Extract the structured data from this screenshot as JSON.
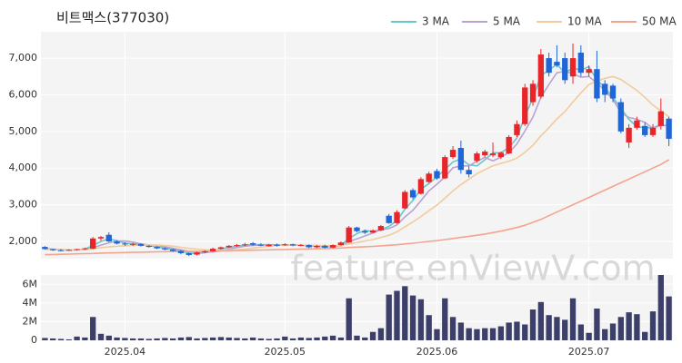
{
  "chart_data": {
    "type": "candlestick",
    "title": "비트맥스(377030)",
    "watermark": "feature.enViewV.com",
    "categories": [
      null,
      null,
      null,
      null,
      null,
      null,
      null,
      null,
      null,
      null,
      "2025.04",
      null,
      null,
      null,
      null,
      null,
      null,
      null,
      null,
      null,
      null,
      null,
      null,
      null,
      null,
      null,
      null,
      null,
      null,
      null,
      "2025.05",
      null,
      null,
      null,
      null,
      null,
      null,
      null,
      null,
      null,
      null,
      null,
      null,
      null,
      null,
      null,
      null,
      null,
      null,
      "2025.06",
      null,
      null,
      null,
      null,
      null,
      null,
      null,
      null,
      null,
      null,
      null,
      null,
      null,
      null,
      null,
      null,
      null,
      null,
      "2025.07",
      null,
      null,
      null,
      null,
      null,
      null,
      null,
      null,
      null,
      null
    ],
    "open": [
      1850,
      1790,
      1760,
      1750,
      1770,
      1790,
      1800,
      2080,
      2180,
      2000,
      1940,
      1920,
      1930,
      1880,
      1850,
      1810,
      1780,
      1740,
      1680,
      1640,
      1700,
      1730,
      1800,
      1840,
      1880,
      1900,
      1950,
      1910,
      1870,
      1910,
      1900,
      1920,
      1890,
      1900,
      1840,
      1880,
      1830,
      1900,
      1970,
      2380,
      2280,
      2240,
      2300,
      2700,
      2500,
      2900,
      3400,
      3300,
      3620,
      3920,
      3720,
      4300,
      4550,
      3950,
      4200,
      4350,
      4350,
      4300,
      4400,
      4900,
      5200,
      5800,
      5950,
      7000,
      6900,
      7000,
      6500,
      7150,
      6600,
      6700,
      6300,
      6250,
      5800,
      4700,
      5100,
      5150,
      4900,
      5150,
      5350
    ],
    "high": [
      1870,
      1800,
      1790,
      1790,
      1800,
      1830,
      2120,
      2150,
      2250,
      2030,
      1980,
      1960,
      1950,
      1900,
      1870,
      1840,
      1800,
      1760,
      1700,
      1720,
      1760,
      1830,
      1860,
      1900,
      1930,
      1960,
      1980,
      1950,
      1930,
      1940,
      1950,
      1940,
      1930,
      1920,
      1900,
      1910,
      1920,
      2000,
      2420,
      2400,
      2320,
      2330,
      2450,
      2750,
      2850,
      3400,
      3450,
      3750,
      3900,
      3980,
      4350,
      4600,
      4750,
      4050,
      4450,
      4500,
      4700,
      4450,
      4900,
      5300,
      6300,
      6400,
      7250,
      7150,
      7350,
      7150,
      7400,
      7350,
      6800,
      7200,
      6400,
      6300,
      5900,
      5200,
      5400,
      5250,
      5200,
      5900,
      5400
    ],
    "low": [
      1780,
      1740,
      1730,
      1740,
      1750,
      1770,
      1790,
      2020,
      1980,
      1920,
      1880,
      1880,
      1860,
      1830,
      1790,
      1760,
      1720,
      1650,
      1600,
      1620,
      1680,
      1720,
      1780,
      1820,
      1850,
      1870,
      1880,
      1870,
      1860,
      1860,
      1880,
      1870,
      1870,
      1820,
      1820,
      1810,
      1820,
      1880,
      1960,
      2250,
      2200,
      2220,
      2280,
      2480,
      2480,
      2880,
      3150,
      3280,
      3600,
      3680,
      3700,
      4250,
      3850,
      3750,
      4150,
      4300,
      4300,
      4250,
      4380,
      4850,
      5150,
      5700,
      5900,
      6500,
      6750,
      6300,
      6300,
      6500,
      6500,
      5800,
      5800,
      5800,
      4950,
      4550,
      5050,
      4850,
      4850,
      5050,
      4600
    ],
    "close": [
      1790,
      1760,
      1750,
      1770,
      1790,
      1810,
      2080,
      2120,
      2000,
      1940,
      1920,
      1930,
      1880,
      1850,
      1810,
      1780,
      1740,
      1680,
      1630,
      1700,
      1730,
      1800,
      1840,
      1880,
      1900,
      1920,
      1910,
      1900,
      1910,
      1880,
      1920,
      1890,
      1900,
      1840,
      1880,
      1830,
      1900,
      1970,
      2380,
      2280,
      2240,
      2300,
      2420,
      2500,
      2800,
      3350,
      3200,
      3700,
      3850,
      3720,
      4300,
      4500,
      3950,
      3830,
      4400,
      4450,
      4400,
      4420,
      4850,
      5200,
      6200,
      6300,
      7100,
      6600,
      6800,
      6400,
      7000,
      6600,
      6700,
      5900,
      6000,
      5900,
      5000,
      5100,
      5300,
      4900,
      5100,
      5550,
      4800
    ],
    "up_color": "#e8262a",
    "down_color": "#1f66d9",
    "series": [
      {
        "name": "3 MA",
        "color": "#66c8cc",
        "values": [
          1800,
          1780,
          1770,
          1760,
          1770,
          1790,
          1890,
          2000,
          2070,
          2020,
          1950,
          1930,
          1910,
          1890,
          1850,
          1810,
          1780,
          1730,
          1680,
          1670,
          1690,
          1740,
          1790,
          1840,
          1870,
          1900,
          1910,
          1910,
          1910,
          1900,
          1900,
          1900,
          1900,
          1880,
          1870,
          1850,
          1870,
          1900,
          2080,
          2210,
          2300,
          2270,
          2320,
          2410,
          2570,
          2880,
          3120,
          3420,
          3580,
          3760,
          3960,
          4170,
          4250,
          4090,
          4060,
          4230,
          4420,
          4420,
          4560,
          4820,
          5420,
          5900,
          6530,
          6670,
          6830,
          6600,
          6730,
          6670,
          6770,
          6400,
          6200,
          5930,
          5630,
          5330,
          5130,
          5100,
          5100,
          5180,
          5150
        ]
      },
      {
        "name": "5 MA",
        "color": "#b9a2d4",
        "values": [
          1800,
          1790,
          1780,
          1770,
          1770,
          1770,
          1830,
          1900,
          1960,
          2010,
          2010,
          1980,
          1930,
          1900,
          1880,
          1850,
          1810,
          1770,
          1730,
          1710,
          1700,
          1710,
          1740,
          1790,
          1830,
          1870,
          1890,
          1900,
          1910,
          1900,
          1910,
          1900,
          1900,
          1890,
          1890,
          1870,
          1870,
          1880,
          1990,
          2070,
          2150,
          2230,
          2320,
          2350,
          2450,
          2670,
          2850,
          3110,
          3380,
          3560,
          3760,
          4010,
          4060,
          4060,
          4190,
          4290,
          4200,
          4300,
          4420,
          4660,
          5010,
          5390,
          5930,
          6280,
          6600,
          6640,
          6580,
          6480,
          6500,
          6320,
          6120,
          5880,
          5510,
          5380,
          5330,
          5250,
          5080,
          5170,
          5150
        ]
      },
      {
        "name": "10 MA",
        "color": "#f2cb9c",
        "values": [
          1780,
          1780,
          1775,
          1770,
          1770,
          1775,
          1800,
          1830,
          1850,
          1870,
          1880,
          1890,
          1900,
          1905,
          1900,
          1890,
          1870,
          1840,
          1810,
          1790,
          1770,
          1760,
          1760,
          1765,
          1770,
          1790,
          1820,
          1845,
          1870,
          1890,
          1900,
          1900,
          1900,
          1895,
          1890,
          1885,
          1880,
          1885,
          1930,
          1970,
          2010,
          2050,
          2110,
          2170,
          2260,
          2400,
          2530,
          2680,
          2840,
          2990,
          3180,
          3380,
          3550,
          3700,
          3850,
          3960,
          4060,
          4130,
          4190,
          4270,
          4430,
          4620,
          4880,
          5100,
          5340,
          5540,
          5800,
          6050,
          6280,
          6370,
          6450,
          6500,
          6420,
          6270,
          6120,
          5930,
          5720,
          5560,
          5400
        ]
      },
      {
        "name": "50 MA",
        "color": "#f4a48e",
        "values": [
          1640,
          1645,
          1650,
          1655,
          1660,
          1665,
          1670,
          1680,
          1685,
          1690,
          1695,
          1700,
          1705,
          1710,
          1715,
          1720,
          1722,
          1724,
          1726,
          1728,
          1730,
          1735,
          1740,
          1745,
          1750,
          1755,
          1760,
          1765,
          1770,
          1775,
          1780,
          1785,
          1790,
          1795,
          1800,
          1805,
          1810,
          1820,
          1835,
          1845,
          1855,
          1865,
          1880,
          1895,
          1910,
          1930,
          1950,
          1975,
          2000,
          2020,
          2050,
          2080,
          2110,
          2140,
          2170,
          2200,
          2240,
          2280,
          2330,
          2380,
          2440,
          2520,
          2600,
          2700,
          2800,
          2900,
          3000,
          3100,
          3200,
          3300,
          3400,
          3500,
          3600,
          3700,
          3800,
          3900,
          4000,
          4100,
          4230
        ]
      }
    ],
    "ylim": [
      1530,
      7720
    ],
    "yticks": [
      {
        "value": 2000,
        "label": "2,000"
      },
      {
        "value": 3000,
        "label": "3,000"
      },
      {
        "value": 4000,
        "label": "4,000"
      },
      {
        "value": 5000,
        "label": "5,000"
      },
      {
        "value": 6000,
        "label": "6,000"
      },
      {
        "value": 7000,
        "label": "7,000"
      }
    ],
    "grid": true,
    "legend": "top-right",
    "volume": {
      "color": "#3d3f6b",
      "values": [
        250000,
        200000,
        150000,
        100000,
        400000,
        300000,
        2500000,
        700000,
        500000,
        300000,
        250000,
        200000,
        200000,
        150000,
        200000,
        250000,
        200000,
        300000,
        350000,
        200000,
        250000,
        300000,
        350000,
        300000,
        250000,
        200000,
        300000,
        200000,
        150000,
        200000,
        400000,
        200000,
        300000,
        250000,
        300000,
        400000,
        500000,
        300000,
        4500000,
        500000,
        300000,
        900000,
        1300000,
        4900000,
        5300000,
        5800000,
        4800000,
        4400000,
        2700000,
        1200000,
        4500000,
        2500000,
        1900000,
        1300000,
        1200000,
        1300000,
        1300000,
        1500000,
        1900000,
        2000000,
        1700000,
        3300000,
        4100000,
        2700000,
        2500000,
        2200000,
        4500000,
        1700000,
        800000,
        3400000,
        1200000,
        1800000,
        2500000,
        3000000,
        2800000,
        900000,
        3100000,
        7000000,
        4700000
      ],
      "ylim": [
        0,
        7000000
      ],
      "yticks": [
        0,
        {
          "value": 2000000,
          "label": "2M"
        },
        {
          "value": 4000000,
          "label": "4M"
        },
        {
          "value": 6000000,
          "label": "6M"
        }
      ]
    }
  }
}
